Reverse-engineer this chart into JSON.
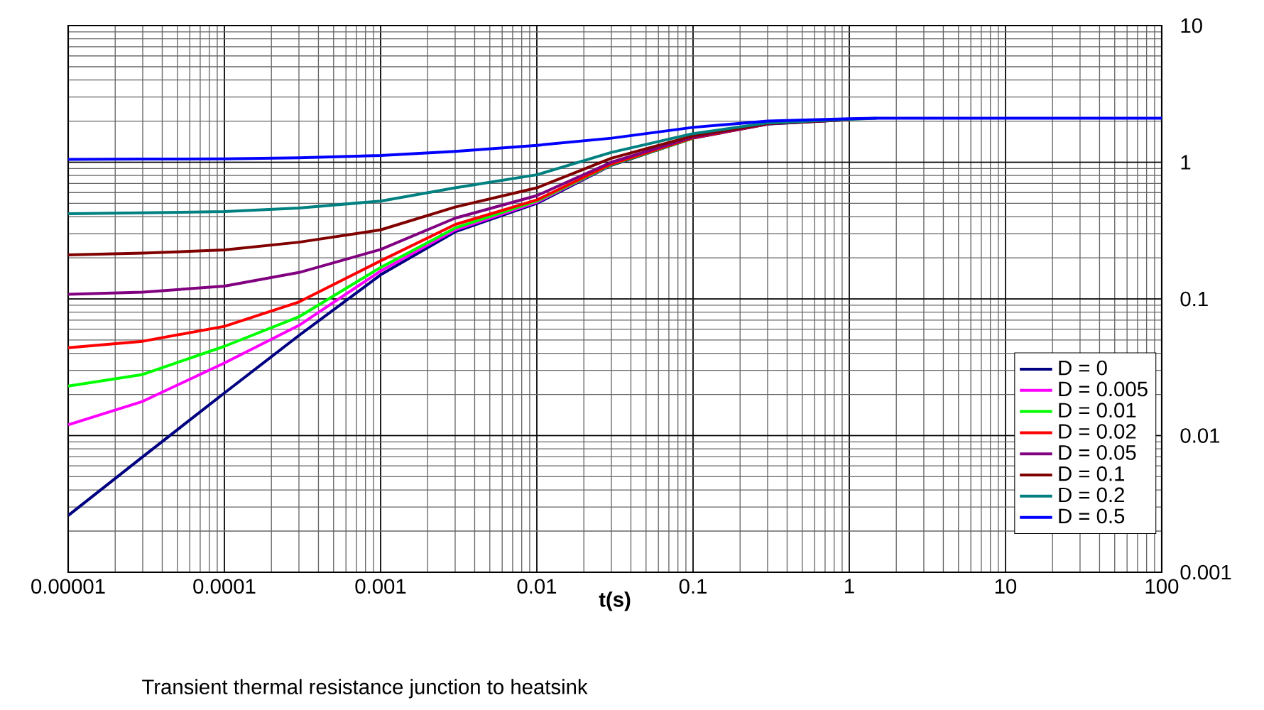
{
  "chart_data": {
    "type": "line",
    "xlabel": "t(s)",
    "annotations": [
      "Transient thermal resistance junction to heatsink"
    ],
    "x": [
      1e-05,
      3e-05,
      0.0001,
      0.0003,
      0.001,
      0.003,
      0.01,
      0.03,
      0.1,
      0.3,
      1,
      1.5,
      100
    ],
    "series": [
      {
        "name": "D = 0",
        "color": "#000080",
        "values": [
          0.0026,
          0.007,
          0.0205,
          0.054,
          0.15,
          0.31,
          0.5,
          0.95,
          1.5,
          1.9,
          2.05,
          null,
          null
        ]
      },
      {
        "name": "D = 0.005",
        "color": "#ff00ff",
        "values": [
          0.012,
          0.0178,
          0.034,
          0.064,
          0.16,
          0.32,
          0.51,
          0.96,
          null,
          null,
          null,
          null,
          null
        ]
      },
      {
        "name": "D = 0.01",
        "color": "#00ff00",
        "values": [
          0.023,
          0.028,
          0.045,
          0.074,
          0.17,
          0.33,
          0.52,
          0.96,
          1.5,
          null,
          null,
          null,
          null
        ]
      },
      {
        "name": "D = 0.02",
        "color": "#ff0000",
        "values": [
          0.044,
          0.049,
          0.063,
          0.095,
          0.19,
          0.35,
          0.53,
          0.97,
          1.51,
          1.9,
          null,
          null,
          null
        ]
      },
      {
        "name": "D = 0.05",
        "color": "#800080",
        "values": [
          0.108,
          0.112,
          0.124,
          0.156,
          0.23,
          0.39,
          0.57,
          1.0,
          1.53,
          1.91,
          2.05,
          null,
          null
        ]
      },
      {
        "name": "D = 0.1",
        "color": "#800000",
        "values": [
          0.21,
          0.216,
          0.228,
          0.26,
          0.32,
          0.47,
          0.65,
          1.07,
          1.56,
          1.92,
          2.05,
          null,
          null
        ]
      },
      {
        "name": "D = 0.2",
        "color": "#008080",
        "values": [
          0.42,
          0.426,
          0.436,
          0.463,
          0.52,
          0.65,
          0.81,
          1.18,
          1.62,
          1.94,
          2.06,
          2.1,
          null
        ]
      },
      {
        "name": "D = 0.5",
        "color": "#0000ff",
        "values": [
          1.05,
          1.054,
          1.06,
          1.077,
          1.12,
          1.2,
          1.33,
          1.5,
          1.8,
          2.0,
          2.08,
          2.1,
          2.1
        ]
      }
    ],
    "xlim": [
      1e-05,
      100
    ],
    "ylim": [
      0.001,
      10
    ],
    "xticks": [
      {
        "value": 1e-05,
        "label": "0.00001"
      },
      {
        "value": 0.0001,
        "label": "0.0001"
      },
      {
        "value": 0.001,
        "label": "0.001"
      },
      {
        "value": 0.01,
        "label": "0.01"
      },
      {
        "value": 0.1,
        "label": "0.1"
      },
      {
        "value": 1,
        "label": "1"
      },
      {
        "value": 10,
        "label": "10"
      },
      {
        "value": 100,
        "label": "100"
      }
    ],
    "yticks": [
      {
        "value": 0.001,
        "label": "0.001"
      },
      {
        "value": 0.01,
        "label": "0.01"
      },
      {
        "value": 0.1,
        "label": "0.1"
      },
      {
        "value": 1,
        "label": "1"
      },
      {
        "value": 10,
        "label": "10"
      }
    ],
    "log": "xy",
    "grid": true,
    "legend": "bottom right"
  }
}
